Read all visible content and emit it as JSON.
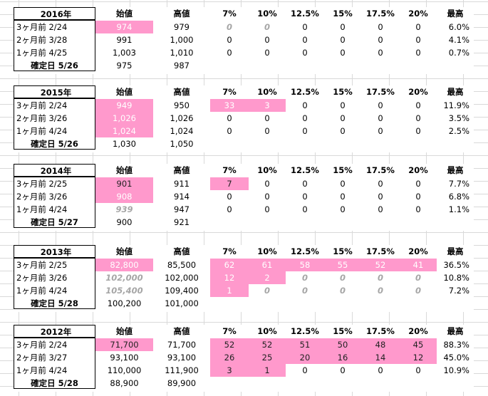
{
  "headers": [
    "始値",
    "高値",
    "7%",
    "10%",
    "12.5%",
    "15%",
    "17.5%",
    "20%",
    "最高"
  ],
  "blocks": [
    {
      "year": "2016年",
      "rows": [
        {
          "label": "3ヶ月前  2/24",
          "open": "974",
          "high": "979",
          "p7": "0",
          "p10": "0",
          "p125": "0",
          "p15": "0",
          "p175": "0",
          "p20": "0",
          "max": "6.0%"
        },
        {
          "label": "2ヶ月前  3/28",
          "open": "991",
          "high": "1,000",
          "p7": "0",
          "p10": "0",
          "p125": "0",
          "p15": "0",
          "p175": "0",
          "p20": "0",
          "max": "4.1%"
        },
        {
          "label": "1ヶ月前  4/25",
          "open": "1,003",
          "high": "1,010",
          "p7": "0",
          "p10": "0",
          "p125": "0",
          "p15": "0",
          "p175": "0",
          "p20": "0",
          "max": "0.7%"
        },
        {
          "label": "確定日  5/26",
          "open": "975",
          "high": "987"
        }
      ]
    },
    {
      "year": "2015年",
      "rows": [
        {
          "label": "3ヶ月前  2/24",
          "open": "949",
          "high": "950",
          "p7": "33",
          "p10": "3",
          "p125": "0",
          "p15": "0",
          "p175": "0",
          "p20": "0",
          "max": "11.9%"
        },
        {
          "label": "2ヶ月前  3/26",
          "open": "1,026",
          "high": "1,026",
          "p7": "0",
          "p10": "0",
          "p125": "0",
          "p15": "0",
          "p175": "0",
          "p20": "0",
          "max": "3.5%"
        },
        {
          "label": "1ヶ月前  4/24",
          "open": "1,024",
          "high": "1,024",
          "p7": "0",
          "p10": "0",
          "p125": "0",
          "p15": "0",
          "p175": "0",
          "p20": "0",
          "max": "2.5%"
        },
        {
          "label": "確定日  5/26",
          "open": "1,030",
          "high": "1,050"
        }
      ]
    },
    {
      "year": "2014年",
      "rows": [
        {
          "label": "3ヶ月前  2/25",
          "open": "901",
          "high": "911",
          "p7": "7",
          "p10": "0",
          "p125": "0",
          "p15": "0",
          "p175": "0",
          "p20": "0",
          "max": "7.7%"
        },
        {
          "label": "2ヶ月前  3/26",
          "open": "908",
          "high": "914",
          "p7": "0",
          "p10": "0",
          "p125": "0",
          "p15": "0",
          "p175": "0",
          "p20": "0",
          "max": "6.8%"
        },
        {
          "label": "1ヶ月前  4/24",
          "open": "939",
          "high": "947",
          "p7": "0",
          "p10": "0",
          "p125": "0",
          "p15": "0",
          "p175": "0",
          "p20": "0",
          "max": "1.1%"
        },
        {
          "label": "確定日  5/27",
          "open": "900",
          "high": "921"
        }
      ]
    },
    {
      "year": "2013年",
      "rows": [
        {
          "label": "3ヶ月前  2/25",
          "open": "82,800",
          "high": "85,500",
          "p7": "62",
          "p10": "61",
          "p125": "58",
          "p15": "55",
          "p175": "52",
          "p20": "41",
          "max": "36.5%"
        },
        {
          "label": "2ヶ月前  3/26",
          "open": "102,000",
          "high": "102,000",
          "p7": "12",
          "p10": "2",
          "p125": "0",
          "p15": "0",
          "p175": "0",
          "p20": "0",
          "max": "10.8%"
        },
        {
          "label": "1ヶ月前  4/24",
          "open": "105,400",
          "high": "109,400",
          "p7": "1",
          "p10": "0",
          "p125": "0",
          "p15": "0",
          "p175": "0",
          "p20": "0",
          "max": "7.2%"
        },
        {
          "label": "確定日  5/28",
          "open": "100,200",
          "high": "101,000"
        }
      ]
    },
    {
      "year": "2012年",
      "rows": [
        {
          "label": "3ヶ月前  2/24",
          "open": "71,700",
          "high": "71,700",
          "p7": "52",
          "p10": "52",
          "p125": "51",
          "p15": "50",
          "p175": "48",
          "p20": "45",
          "max": "88.3%"
        },
        {
          "label": "2ヶ月前  3/27",
          "open": "93,100",
          "high": "93,100",
          "p7": "26",
          "p10": "25",
          "p125": "20",
          "p15": "16",
          "p175": "14",
          "p20": "12",
          "max": "45.0%"
        },
        {
          "label": "1ヶ月前  4/24",
          "open": "110,000",
          "high": "111,900",
          "p7": "3",
          "p10": "1",
          "p125": "0",
          "p15": "0",
          "p175": "0",
          "p20": "0",
          "max": "10.9%"
        },
        {
          "label": "確定日  5/28",
          "open": "88,900",
          "high": "89,900"
        }
      ]
    }
  ],
  "colors": {
    "highlight": "#ff99cc",
    "muted": "#a6a6a6"
  }
}
